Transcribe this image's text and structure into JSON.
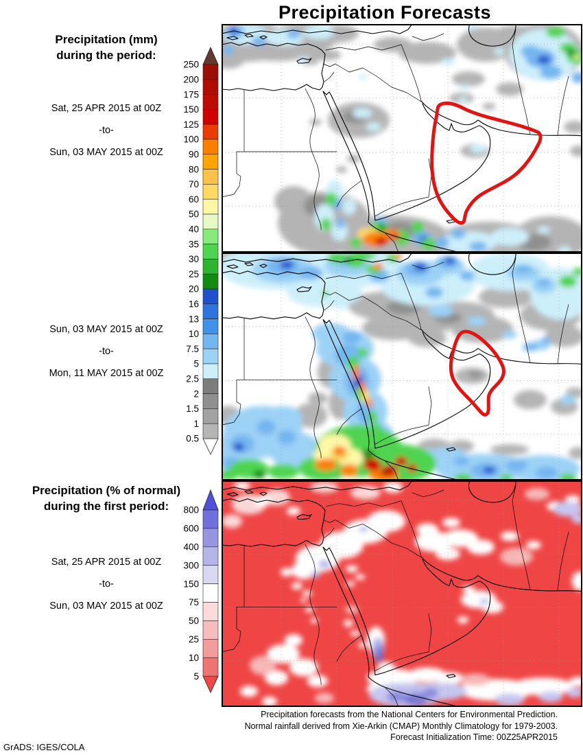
{
  "title": "Precipitation Forecasts",
  "mm_legend": {
    "line1": "Precipitation (mm)",
    "line2": "during the period:"
  },
  "pct_legend": {
    "line1": "Precipitation (% of normal)",
    "line2": "during the first period:"
  },
  "periods": {
    "p1": {
      "start": "Sat, 25 APR 2015 at 00Z",
      "sep": "-to-",
      "end": "Sun, 03 MAY 2015 at 00Z"
    },
    "p2": {
      "start": "Sun, 03 MAY 2015 at 00Z",
      "sep": "-to-",
      "end": "Mon, 11 MAY 2015 at 00Z"
    },
    "p3": {
      "start": "Sat, 25 APR 2015 at 00Z",
      "sep": "-to-",
      "end": "Sun, 03 MAY 2015 at 00Z"
    }
  },
  "colorbar_mm": {
    "labels": [
      "250",
      "200",
      "175",
      "150",
      "125",
      "100",
      "90",
      "80",
      "70",
      "60",
      "50",
      "40",
      "35",
      "30",
      "25",
      "20",
      "16",
      "13",
      "10",
      "7.5",
      "5",
      "2.5",
      "2",
      "1.5",
      "1",
      "0.5"
    ],
    "cell_colors": [
      "#9b0f06",
      "#ad0d03",
      "#bd0b01",
      "#d00000",
      "#e93c00",
      "#fd7f00",
      "#ffa400",
      "#ffc14a",
      "#ffd966",
      "#fef8a6",
      "#e7f9c4",
      "#86ea7c",
      "#4fd44f",
      "#2eb42e",
      "#118c11",
      "#2051cd",
      "#2e73de",
      "#3e92ea",
      "#74b6f0",
      "#9cd2f6",
      "#cdeffa",
      "#7d7d7d",
      "#8f8f8f",
      "#a2a2a2",
      "#b5b5b5"
    ],
    "arrow_top_color": "#653a2e",
    "arrow_bottom_color": "#ffffff"
  },
  "colorbar_pct": {
    "labels": [
      "800",
      "600",
      "400",
      "300",
      "150",
      "75",
      "50",
      "25",
      "10",
      "5"
    ],
    "cell_colors": [
      "#7070dd",
      "#9595e2",
      "#b5b5ea",
      "#d8d8f3",
      "#ffffff",
      "#fbdada",
      "#f7bcbc",
      "#f29c9c",
      "#ee7373"
    ],
    "arrow_top_color": "#5050dd",
    "arrow_bottom_color": "#f04848"
  },
  "map_colors": {
    "highlight_region_outline": "#e11414",
    "pct_map_base_red": "#ef4545"
  },
  "footer": {
    "line1": "Precipitation forecasts from the National Centers for Environmental Prediction.",
    "line2": "Normal rainfall derived from Xie-Arkin (CMAP) Monthly Climatology for 1979-2003.",
    "line3": "Forecast Initialization Time: 00Z25APR2015"
  },
  "credit": "GrADS: IGES/COLA"
}
